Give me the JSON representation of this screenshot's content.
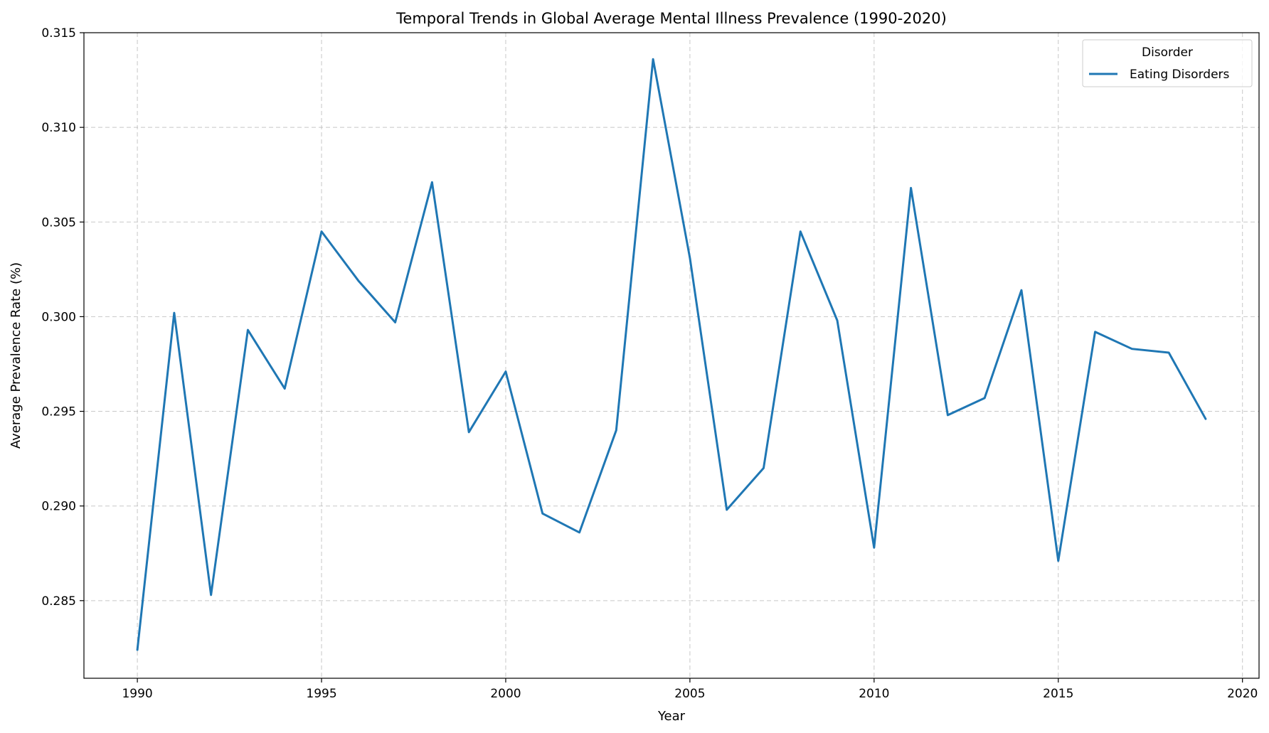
{
  "chart_data": {
    "type": "line",
    "title": "Temporal Trends in Global Average Mental Illness Prevalence (1990-2020)",
    "xlabel": "Year",
    "ylabel": "Average Prevalence Rate (%)",
    "xlim": [
      1988.55,
      2020.45
    ],
    "ylim": [
      0.2809,
      0.315
    ],
    "x_ticks": [
      1990,
      1995,
      2000,
      2005,
      2010,
      2015,
      2020
    ],
    "x_tick_labels": [
      "1990",
      "1995",
      "2000",
      "2005",
      "2010",
      "2015",
      "2020"
    ],
    "y_ticks": [
      0.285,
      0.29,
      0.295,
      0.3,
      0.305,
      0.31,
      0.315
    ],
    "y_tick_labels": [
      "0.285",
      "0.290",
      "0.295",
      "0.300",
      "0.305",
      "0.310",
      "0.315"
    ],
    "grid": true,
    "legend": {
      "title": "Disorder",
      "position": "top-right"
    },
    "series": [
      {
        "name": "Eating Disorders",
        "color": "#1f77b4",
        "x": [
          1990,
          1991,
          1992,
          1993,
          1994,
          1995,
          1996,
          1997,
          1998,
          1999,
          2000,
          2001,
          2002,
          2003,
          2004,
          2005,
          2006,
          2007,
          2008,
          2009,
          2010,
          2011,
          2012,
          2013,
          2014,
          2015,
          2016,
          2017,
          2018,
          2019
        ],
        "values": [
          0.2824,
          0.3002,
          0.2853,
          0.2993,
          0.2962,
          0.3045,
          0.3019,
          0.2997,
          0.3071,
          0.2939,
          0.2971,
          0.2896,
          0.2886,
          0.294,
          0.3136,
          0.3031,
          0.2898,
          0.292,
          0.3045,
          0.2998,
          0.2878,
          0.3068,
          0.2948,
          0.2957,
          0.3014,
          0.2871,
          0.2992,
          0.2983,
          0.2981,
          0.2946
        ]
      }
    ]
  }
}
